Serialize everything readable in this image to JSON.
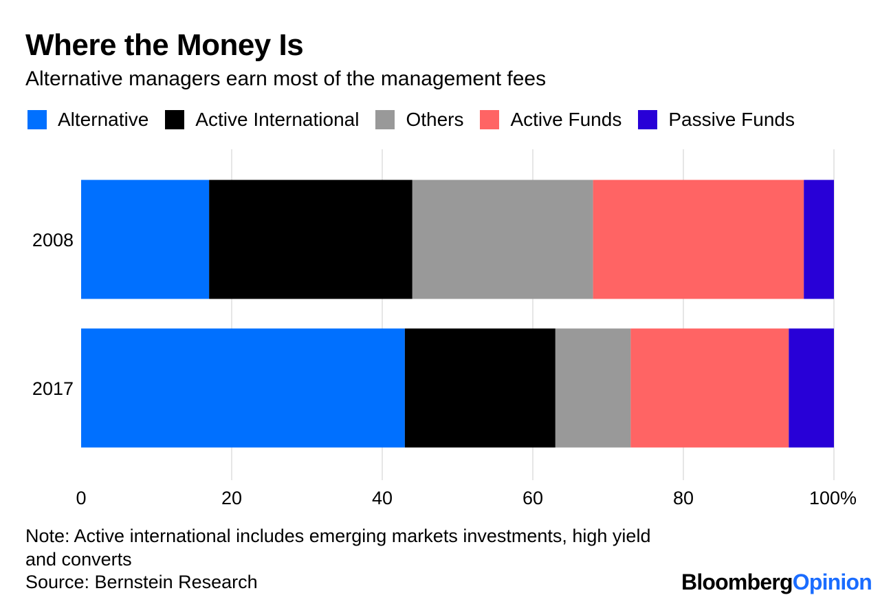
{
  "chart_data": {
    "type": "bar",
    "orientation": "horizontal",
    "stacked": true,
    "title": "Where the Money Is",
    "subtitle": "Alternative managers earn most of the management fees",
    "categories": [
      "2008",
      "2017"
    ],
    "series": [
      {
        "name": "Alternative",
        "color": "#0070ff",
        "values": [
          17,
          43
        ]
      },
      {
        "name": "Active International",
        "color": "#000000",
        "values": [
          27,
          20
        ]
      },
      {
        "name": "Others",
        "color": "#999999",
        "values": [
          24,
          10
        ]
      },
      {
        "name": "Active Funds",
        "color": "#ff6464",
        "values": [
          28,
          21
        ]
      },
      {
        "name": "Passive Funds",
        "color": "#2800d7",
        "values": [
          4,
          6
        ]
      }
    ],
    "xlim": [
      0,
      100
    ],
    "xticks": [
      0,
      20,
      40,
      60,
      80,
      100
    ],
    "xtick_labels": [
      "0",
      "20",
      "40",
      "60",
      "80",
      "100%"
    ],
    "grid": true,
    "legend_position": "top"
  },
  "note": "Note: Active international includes emerging markets investments, high yield and converts",
  "source": "Source: Bernstein Research",
  "brand": {
    "part1": "Bloomberg",
    "part2": "Opinion"
  }
}
